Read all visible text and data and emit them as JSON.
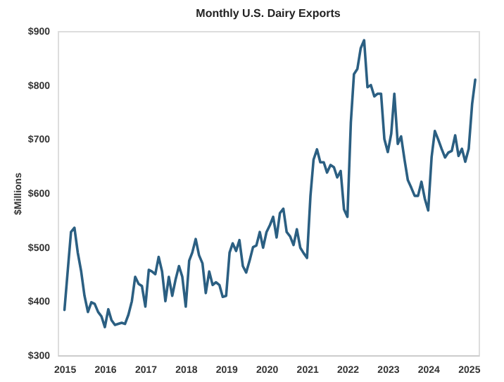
{
  "chart_data": {
    "type": "line",
    "title": "Monthly U.S. Dairy Exports",
    "ylabel": "$Millions",
    "x": [
      "2015-01",
      "2015-02",
      "2015-03",
      "2015-04",
      "2015-05",
      "2015-06",
      "2015-07",
      "2015-08",
      "2015-09",
      "2015-10",
      "2015-11",
      "2015-12",
      "2016-01",
      "2016-02",
      "2016-03",
      "2016-04",
      "2016-05",
      "2016-06",
      "2016-07",
      "2016-08",
      "2016-09",
      "2016-10",
      "2016-11",
      "2016-12",
      "2017-01",
      "2017-02",
      "2017-03",
      "2017-04",
      "2017-05",
      "2017-06",
      "2017-07",
      "2017-08",
      "2017-09",
      "2017-10",
      "2017-11",
      "2017-12",
      "2018-01",
      "2018-02",
      "2018-03",
      "2018-04",
      "2018-05",
      "2018-06",
      "2018-07",
      "2018-08",
      "2018-09",
      "2018-10",
      "2018-11",
      "2018-12",
      "2019-01",
      "2019-02",
      "2019-03",
      "2019-04",
      "2019-05",
      "2019-06",
      "2019-07",
      "2019-08",
      "2019-09",
      "2019-10",
      "2019-11",
      "2019-12",
      "2020-01",
      "2020-02",
      "2020-03",
      "2020-04",
      "2020-05",
      "2020-06",
      "2020-07",
      "2020-08",
      "2020-09",
      "2020-10",
      "2020-11",
      "2020-12",
      "2021-01",
      "2021-02",
      "2021-03",
      "2021-04",
      "2021-05",
      "2021-06",
      "2021-07",
      "2021-08",
      "2021-09",
      "2021-10",
      "2021-11",
      "2021-12",
      "2022-01",
      "2022-02",
      "2022-03",
      "2022-04",
      "2022-05",
      "2022-06",
      "2022-07",
      "2022-08",
      "2022-09",
      "2022-10",
      "2022-11",
      "2022-12",
      "2023-01",
      "2023-02",
      "2023-03",
      "2023-04",
      "2023-05",
      "2023-06",
      "2023-07",
      "2023-08",
      "2023-09",
      "2023-10",
      "2023-11",
      "2023-12",
      "2024-01",
      "2024-02",
      "2024-03",
      "2024-04",
      "2024-05",
      "2024-06",
      "2024-07",
      "2024-08",
      "2024-09",
      "2024-10",
      "2024-11",
      "2024-12",
      "2025-01",
      "2025-02",
      "2025-03"
    ],
    "series": [
      {
        "color": "#2b5f82",
        "values": [
          384,
          460,
          528,
          536,
          490,
          455,
          410,
          380,
          398,
          395,
          380,
          372,
          352,
          385,
          365,
          356,
          358,
          360,
          358,
          375,
          400,
          445,
          432,
          428,
          390,
          458,
          455,
          450,
          482,
          455,
          400,
          445,
          410,
          440,
          465,
          445,
          390,
          475,
          490,
          515,
          485,
          470,
          415,
          455,
          430,
          435,
          430,
          408,
          410,
          490,
          507,
          493,
          513,
          465,
          453,
          475,
          500,
          503,
          528,
          499,
          528,
          541,
          556,
          518,
          563,
          571,
          528,
          520,
          504,
          533,
          499,
          489,
          480,
          595,
          662,
          681,
          657,
          657,
          638,
          652,
          648,
          629,
          641,
          570,
          556,
          731,
          820,
          830,
          868,
          883,
          796,
          800,
          779,
          784,
          784,
          700,
          676,
          710,
          784,
          691,
          705,
          662,
          624,
          610,
          595,
          595,
          621,
          590,
          568,
          667,
          715,
          699,
          682,
          666,
          675,
          678,
          707,
          669,
          682,
          658,
          682,
          765,
          810
        ]
      }
    ],
    "xlim": [
      "2014-11",
      "2025-04"
    ],
    "xticks": [
      "2015",
      "2016",
      "2017",
      "2018",
      "2019",
      "2020",
      "2021",
      "2022",
      "2023",
      "2024",
      "2025"
    ],
    "ylim": [
      300,
      900
    ],
    "yticks": [
      {
        "value": 300,
        "label": "$300"
      },
      {
        "value": 400,
        "label": "$400"
      },
      {
        "value": 500,
        "label": "$500"
      },
      {
        "value": 600,
        "label": "$600"
      },
      {
        "value": 700,
        "label": "$700"
      },
      {
        "value": 800,
        "label": "$800"
      },
      {
        "value": 900,
        "label": "$900"
      }
    ],
    "grid": false,
    "marker": "none",
    "line_style": "solid"
  }
}
